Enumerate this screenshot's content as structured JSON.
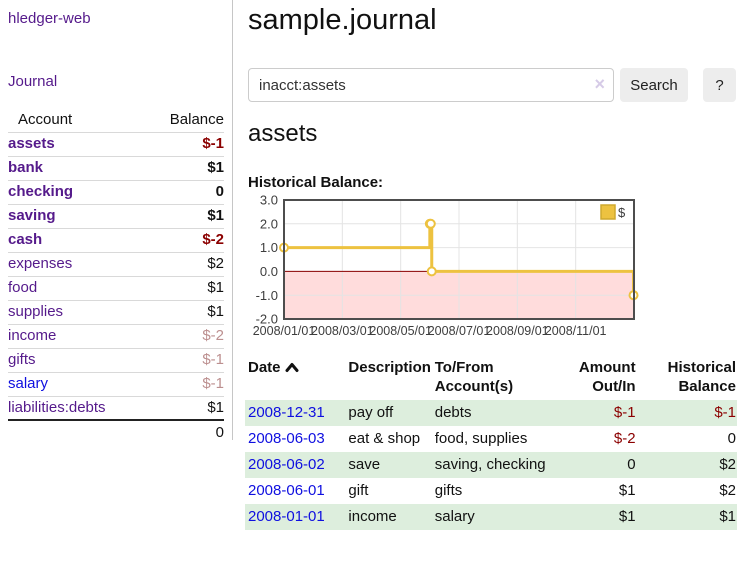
{
  "app": {
    "brand": "hledger-web",
    "nav_journal": "Journal"
  },
  "colors": {
    "link_purple": "#551a8b",
    "link_blue": "#0f0fe0",
    "negative_strong": "#8b0000",
    "negative_muted": "#bc8f8f",
    "row_green": "#ddeedd",
    "chart_line": "#edc240",
    "chart_negative_fill": "#ffdcdc",
    "chart_zero_line": "#8b0000"
  },
  "sidebar": {
    "header": {
      "account": "Account",
      "balance": "Balance"
    },
    "accounts": [
      {
        "name": "assets",
        "balance": "$-1"
      },
      {
        "name": "bank",
        "balance": "$1"
      },
      {
        "name": "checking",
        "balance": "0"
      },
      {
        "name": "saving",
        "balance": "$1"
      },
      {
        "name": "cash",
        "balance": "$-2"
      },
      {
        "name": "expenses",
        "balance": "$2"
      },
      {
        "name": "food",
        "balance": "$1"
      },
      {
        "name": "supplies",
        "balance": "$1"
      },
      {
        "name": "income",
        "balance": "$-2"
      },
      {
        "name": "gifts",
        "balance": "$-1"
      },
      {
        "name": "salary",
        "balance": "$-1"
      },
      {
        "name": "liabilities:debts",
        "balance": "$1"
      }
    ],
    "total": "0"
  },
  "header": {
    "title": "sample.journal"
  },
  "search": {
    "value": "inacct:assets",
    "clear_icon": "×",
    "button_label": "Search",
    "help_label": "?"
  },
  "account_page": {
    "title": "assets",
    "chart_label": "Historical Balance:"
  },
  "chart_data": {
    "type": "line",
    "title": "Historical Balance",
    "steps": true,
    "series": [
      {
        "name": "$",
        "color": "#edc240",
        "points": [
          [
            "2008-01-01",
            1
          ],
          [
            "2008-06-01",
            2
          ],
          [
            "2008-06-02",
            2
          ],
          [
            "2008-06-03",
            0
          ],
          [
            "2008-12-31",
            -1
          ]
        ]
      }
    ],
    "x_ticks": [
      "2008/01/01",
      "2008/03/01",
      "2008/05/01",
      "2008/07/01",
      "2008/09/01",
      "2008/11/01"
    ],
    "y_ticks": [
      3.0,
      2.0,
      1.0,
      0.0,
      -1.0,
      -2.0
    ],
    "ylim": [
      -2,
      3
    ],
    "xlim": [
      "2008-01-01",
      "2009-01-01"
    ],
    "grid": true,
    "legend_position": "top-right",
    "legend": "$"
  },
  "register": {
    "headers": {
      "date": "Date",
      "description": "Description",
      "account": "To/From Account(s)",
      "amount": "Amount Out/In",
      "balance": "Historical Balance"
    },
    "rows": [
      {
        "date": "2008-12-31",
        "description": "pay off",
        "accounts": "debts",
        "amount": "$-1",
        "balance": "$-1"
      },
      {
        "date": "2008-06-03",
        "description": "eat & shop",
        "accounts": "food, supplies",
        "amount": "$-2",
        "balance": "0"
      },
      {
        "date": "2008-06-02",
        "description": "save",
        "accounts": "saving, checking",
        "amount": "0",
        "balance": "$2"
      },
      {
        "date": "2008-06-01",
        "description": "gift",
        "accounts": "gifts",
        "amount": "$1",
        "balance": "$2"
      },
      {
        "date": "2008-01-01",
        "description": "income",
        "accounts": "salary",
        "amount": "$1",
        "balance": "$1"
      }
    ]
  }
}
